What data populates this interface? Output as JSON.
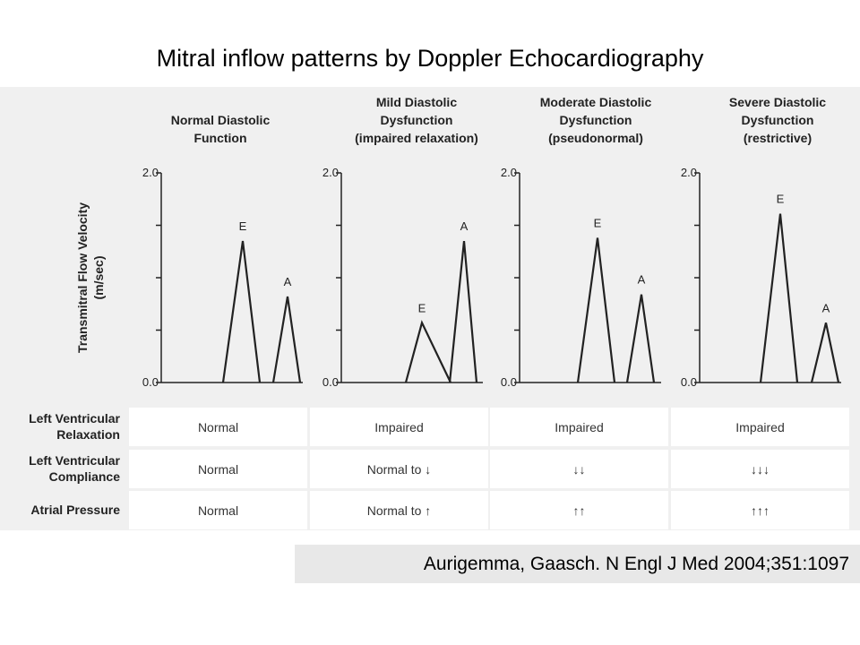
{
  "title": "Mitral inflow patterns by Doppler Echocardiography",
  "citation": "Aurigemma, Gaasch. N Engl J Med 2004;351:1097",
  "chart_data": {
    "type": "line",
    "ylabel": "Transmitral Flow Velocity (m/sec)",
    "ylim": [
      0.0,
      2.0
    ],
    "yticks": [
      "2.0",
      "0.0"
    ],
    "panels": [
      {
        "title": [
          "Normal Diastolic",
          "Function"
        ],
        "E": 1.35,
        "A": 0.82,
        "E_label": "E",
        "A_label": "A"
      },
      {
        "title": [
          "Mild Diastolic",
          "Dysfunction",
          "(impaired relaxation)"
        ],
        "E": 0.57,
        "A": 1.35,
        "E_label": "E",
        "A_label": "A"
      },
      {
        "title": [
          "Moderate Diastolic",
          "Dysfunction",
          "(pseudonormal)"
        ],
        "E": 1.38,
        "A": 0.84,
        "E_label": "E",
        "A_label": "A"
      },
      {
        "title": [
          "Severe Diastolic",
          "Dysfunction",
          "(restrictive)"
        ],
        "E": 1.61,
        "A": 0.57,
        "E_label": "E",
        "A_label": "A"
      }
    ]
  },
  "table": {
    "rows": [
      {
        "label": [
          "Left Ventricular",
          "Relaxation"
        ],
        "cells": [
          "Normal",
          "Impaired",
          "Impaired",
          "Impaired"
        ]
      },
      {
        "label": [
          "Left Ventricular",
          "Compliance"
        ],
        "cells": [
          "Normal",
          "Normal to ↓",
          "↓↓",
          "↓↓↓"
        ]
      },
      {
        "label": [
          "Atrial Pressure"
        ],
        "cells": [
          "Normal",
          "Normal to ↑",
          "↑↑",
          "↑↑↑"
        ]
      }
    ]
  }
}
